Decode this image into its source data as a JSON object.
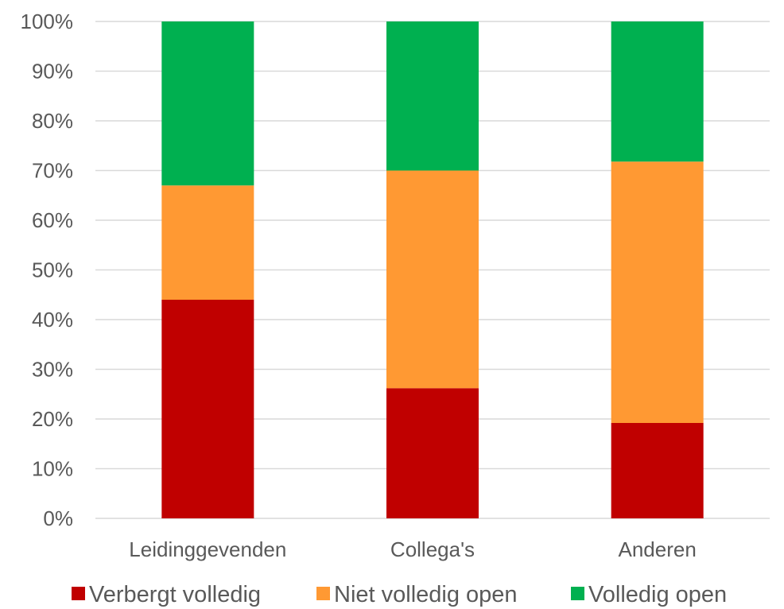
{
  "chart_data": {
    "type": "bar",
    "stacked": true,
    "percent": true,
    "categories": [
      "Leidinggevenden",
      "Collega's",
      "Anderen"
    ],
    "series": [
      {
        "name": "Verbergt volledig",
        "color": "#C00000",
        "values": [
          44,
          26.2,
          19.2
        ]
      },
      {
        "name": "Niet volledig open",
        "color": "#FF9933",
        "values": [
          23,
          43.8,
          52.6
        ]
      },
      {
        "name": "Volledig open",
        "color": "#00B050",
        "values": [
          33,
          30,
          28.2
        ]
      }
    ],
    "ylim": [
      0,
      100
    ],
    "yticks": [
      "0%",
      "10%",
      "20%",
      "30%",
      "40%",
      "50%",
      "60%",
      "70%",
      "80%",
      "90%",
      "100%"
    ],
    "grid": true,
    "legend_position": "bottom"
  }
}
